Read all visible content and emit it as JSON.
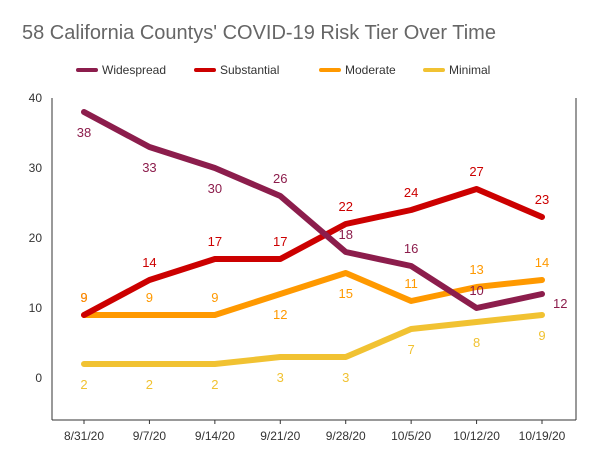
{
  "chart_data": {
    "type": "line",
    "title": "58 California Countys' COVID-19 Risk Tier Over Time",
    "xlabel": "",
    "ylabel": "",
    "categories": [
      "8/31/20",
      "9/7/20",
      "9/14/20",
      "9/21/20",
      "9/28/20",
      "10/5/20",
      "10/12/20",
      "10/19/20"
    ],
    "ylim": [
      -6,
      40
    ],
    "yticks": [
      0,
      10,
      20,
      30,
      40
    ],
    "grid": false,
    "legend_position": "top",
    "series": [
      {
        "name": "Widespread",
        "color": "#8c1d4c",
        "values": [
          38,
          33,
          30,
          26,
          18,
          16,
          10,
          12
        ],
        "label_positions": [
          "below",
          "below",
          "below",
          "above",
          "above",
          "above",
          "above",
          "right"
        ]
      },
      {
        "name": "Substantial",
        "color": "#cc0000",
        "values": [
          9,
          14,
          17,
          17,
          22,
          24,
          27,
          23
        ],
        "label_positions": [
          "above",
          "above",
          "above",
          "above",
          "above",
          "above",
          "above",
          "above"
        ]
      },
      {
        "name": "Moderate",
        "color": "#ff9900",
        "values": [
          9,
          9,
          9,
          12,
          15,
          11,
          13,
          14
        ],
        "label_positions": [
          "above",
          "above",
          "above",
          "below",
          "below",
          "above",
          "above",
          "above"
        ]
      },
      {
        "name": "Minimal",
        "color": "#f1c232",
        "values": [
          2,
          2,
          2,
          3,
          3,
          7,
          8,
          9
        ],
        "label_positions": [
          "below",
          "below",
          "below",
          "below",
          "below",
          "below",
          "below",
          "below"
        ]
      }
    ]
  }
}
